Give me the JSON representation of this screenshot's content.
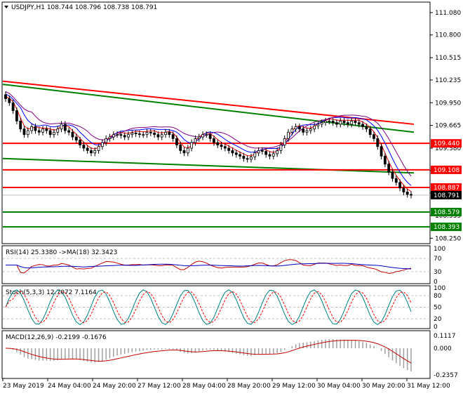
{
  "header": {
    "symbol_line": "USDJPY,H1  108.744 108.796 108.738 108.791",
    "collapse_icon": "triangle-down-icon"
  },
  "colors": {
    "candle": "#000000",
    "ma_fast": "#ff0000",
    "ma_mid": "#0000ff",
    "ma_slow": "#800080",
    "trend_red": "#ff0000",
    "trend_green": "#008000",
    "level_red": "#ff0000",
    "level_green": "#008000",
    "rsi_line": "#c00000",
    "rsi_ma": "#0000c0",
    "stoch_main": "#008080",
    "stoch_signal": "#ff0000",
    "macd_hist": "#a0a0a0",
    "macd_signal": "#c00000"
  },
  "price_axis": {
    "ticks": [
      "111.080",
      "110.800",
      "110.515",
      "110.235",
      "109.950",
      "109.665",
      "109.380",
      "109.100",
      "108.815",
      "108.535",
      "108.250"
    ]
  },
  "price_labels": [
    {
      "id": "r1",
      "text": "109.440",
      "value": 109.44,
      "kind": "red"
    },
    {
      "id": "r2",
      "text": "109.108",
      "value": 109.108,
      "kind": "red"
    },
    {
      "id": "r3",
      "text": "108.887",
      "value": 108.887,
      "kind": "red"
    },
    {
      "id": "cur",
      "text": "108.791",
      "value": 108.791,
      "kind": "current"
    },
    {
      "id": "g1",
      "text": "108.579",
      "value": 108.579,
      "kind": "green"
    },
    {
      "id": "g2",
      "text": "108.393",
      "value": 108.393,
      "kind": "green"
    }
  ],
  "rsi": {
    "title": "RSI(14) 25.3380  ->MA(18) 32.3423",
    "ticks": [
      "100",
      "70",
      "30",
      "0"
    ]
  },
  "stoch": {
    "title": "Stoch(5,3,3) 12.7072 7.1164",
    "ticks": [
      "100",
      "80",
      "50",
      "20",
      "0"
    ]
  },
  "macd": {
    "title": "MACD(12,26,9) -0.2199 -0.1676",
    "ticks": [
      "0.1117",
      "0.000",
      "-0.2357"
    ]
  },
  "time_axis": {
    "labels": [
      "23 May 2019",
      "24 May 04:00",
      "24 May 20:00",
      "27 May 12:00",
      "28 May 04:00",
      "28 May 20:00",
      "29 May 12:00",
      "30 May 04:00",
      "30 May 20:00",
      "31 May 12:00"
    ]
  },
  "chart_data": {
    "type": "candlestick",
    "symbol": "USDJPY",
    "timeframe": "H1",
    "ohlc_last": {
      "open": 108.744,
      "high": 108.796,
      "low": 108.738,
      "close": 108.791
    },
    "close_series": [
      110.0,
      109.95,
      109.85,
      109.72,
      109.62,
      109.55,
      109.6,
      109.65,
      109.6,
      109.58,
      109.62,
      109.6,
      109.55,
      109.58,
      109.62,
      109.68,
      109.6,
      109.58,
      109.52,
      109.48,
      109.42,
      109.38,
      109.35,
      109.32,
      109.35,
      109.4,
      109.45,
      109.5,
      109.52,
      109.55,
      109.55,
      109.54,
      109.52,
      109.55,
      109.57,
      109.56,
      109.55,
      109.55,
      109.58,
      109.57,
      109.55,
      109.52,
      109.55,
      109.58,
      109.55,
      109.5,
      109.42,
      109.35,
      109.32,
      109.38,
      109.45,
      109.5,
      109.52,
      109.55,
      109.55,
      109.5,
      109.45,
      109.42,
      109.4,
      109.38,
      109.35,
      109.32,
      109.3,
      109.28,
      109.25,
      109.24,
      109.27,
      109.32,
      109.35,
      109.34,
      109.3,
      109.28,
      109.31,
      109.35,
      109.42,
      109.5,
      109.58,
      109.62,
      109.65,
      109.62,
      109.58,
      109.6,
      109.62,
      109.66,
      109.68,
      109.7,
      109.72,
      109.72,
      109.7,
      109.68,
      109.72,
      109.7,
      109.68,
      109.72,
      109.7,
      109.68,
      109.65,
      109.62,
      109.55,
      109.5,
      109.4,
      109.28,
      109.18,
      109.08,
      109.0,
      108.95,
      108.88,
      108.83,
      108.8,
      108.79
    ],
    "moving_averages": [
      {
        "name": "MA fast",
        "color": "#ff0000"
      },
      {
        "name": "MA mid",
        "color": "#0000ff"
      },
      {
        "name": "MA slow",
        "color": "#800080"
      }
    ],
    "trendlines": [
      {
        "color": "#ff0000",
        "from": 110.22,
        "to": 109.68
      },
      {
        "color": "#008000",
        "from": 110.18,
        "to": 109.58
      },
      {
        "color": "#008000",
        "from": 109.25,
        "to": 109.07
      }
    ],
    "levels": [
      109.44,
      109.108,
      108.887,
      108.579,
      108.393
    ],
    "current_price": 108.791,
    "y_range": [
      108.2,
      111.15
    ],
    "rsi": {
      "value": 25.338,
      "ma": 32.3423,
      "levels": [
        70,
        30
      ]
    },
    "stoch": {
      "k": 12.7072,
      "d": 7.1164,
      "levels": [
        80,
        50,
        20
      ]
    },
    "macd": {
      "main": -0.2199,
      "signal": -0.1676,
      "range": [
        -0.2357,
        0.1117
      ]
    }
  }
}
